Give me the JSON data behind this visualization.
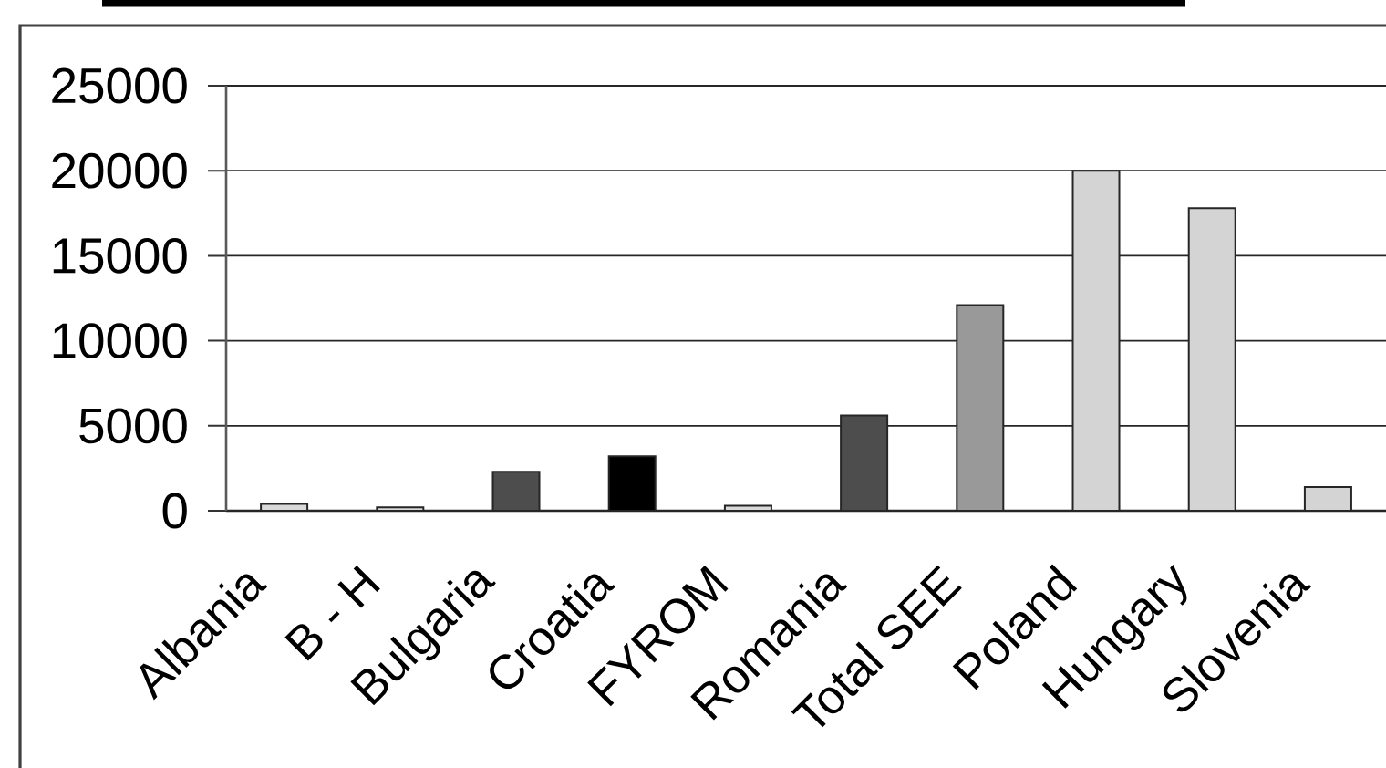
{
  "chart_data": {
    "type": "bar",
    "categories": [
      "Albania",
      "B - H",
      "Bulgaria",
      "Croatia",
      "FYROM",
      "Romania",
      "Total SEE",
      "Poland",
      "Hungary",
      "Slovenia"
    ],
    "values": [
      400,
      200,
      2300,
      3200,
      300,
      5600,
      12100,
      20000,
      17800,
      1400
    ],
    "colors": [
      "#d9d9d9",
      "#d9d9d9",
      "#4d4d4d",
      "#000000",
      "#d9d9d9",
      "#4d4d4d",
      "#999999",
      "#d4d4d4",
      "#d4d4d4",
      "#d4d4d4"
    ],
    "ylim": [
      0,
      25000
    ],
    "yticks": [
      0,
      5000,
      10000,
      15000,
      20000,
      25000
    ],
    "grid": "y"
  }
}
